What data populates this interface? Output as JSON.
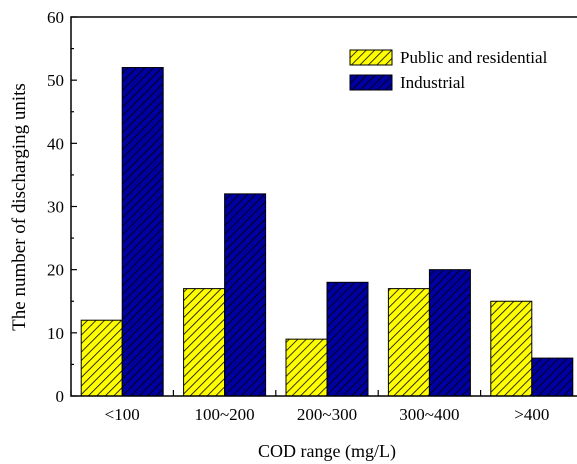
{
  "chart_data": {
    "type": "bar",
    "categories": [
      "<100",
      "100~200",
      "200~300",
      "300~400",
      ">400"
    ],
    "series": [
      {
        "name": "Public and residential",
        "values": [
          12,
          17,
          9,
          17,
          15
        ],
        "color": "#ffff00",
        "hatch": "diagonal"
      },
      {
        "name": "Industrial",
        "values": [
          52,
          32,
          18,
          20,
          6
        ],
        "color": "#0000a0",
        "hatch": "diagonal"
      }
    ],
    "xlabel": "COD range (mg/L)",
    "ylabel": "The number of discharging units",
    "ylim": [
      0,
      60
    ],
    "yticks": [
      0,
      10,
      20,
      30,
      40,
      50,
      60
    ],
    "grid": false,
    "legend_position": "top-right"
  }
}
